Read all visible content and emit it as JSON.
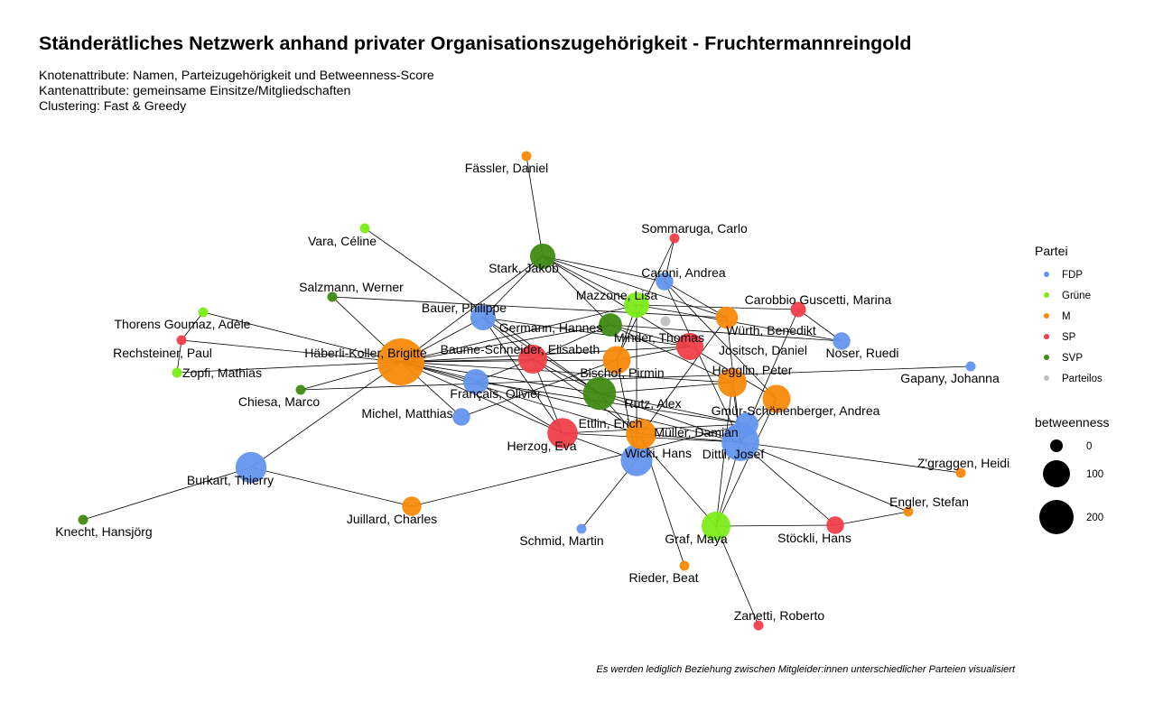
{
  "title": "Ständerätliches Netzwerk anhand privater Organisationszugehörigkeit - Fruchtermannreingold",
  "subtitle": [
    "Knotenattribute: Namen, Parteizugehörigkeit und Betweenness-Score",
    "Kantenattribute: gemeinsame Einsitze/Mitgliedschaften",
    "Clustering: Fast & Greedy"
  ],
  "caption": "Es werden lediglich Beziehung zwischen Mitgleider:innen unterschiedlicher Parteien visualisiert",
  "legend": {
    "party_title": "Partei",
    "parties": [
      {
        "name": "FDP",
        "color": "#6495ED"
      },
      {
        "name": "Grüne",
        "color": "#7CEC1A"
      },
      {
        "name": "M",
        "color": "#F88A0B"
      },
      {
        "name": "SP",
        "color": "#F03E48"
      },
      {
        "name": "SVP",
        "color": "#3F8A12"
      },
      {
        "name": "Parteilos",
        "color": "#BEBEBE"
      }
    ],
    "size_title": "betweenness",
    "sizes": [
      {
        "label": "0",
        "value": 0
      },
      {
        "label": "100",
        "value": 100
      },
      {
        "label": "200",
        "value": 200
      }
    ]
  },
  "nodes": [
    {
      "id": "fassler",
      "name": "Fässler, Daniel",
      "party": "M",
      "betweenness": 0
    },
    {
      "id": "sommaruga",
      "name": "Sommaruga, Carlo",
      "party": "SP",
      "betweenness": 0
    },
    {
      "id": "vara",
      "name": "Vara, Céline",
      "party": "Grüne",
      "betweenness": 0
    },
    {
      "id": "stark",
      "name": "Stark, Jakob",
      "party": "SVP",
      "betweenness": 40
    },
    {
      "id": "caroni",
      "name": "Caroni, Andrea",
      "party": "FDP",
      "betweenness": 10
    },
    {
      "id": "salzmann",
      "name": "Salzmann, Werner",
      "party": "SVP",
      "betweenness": 0
    },
    {
      "id": "mazzone",
      "name": "Mazzone, Lisa",
      "party": "Grüne",
      "betweenness": 40
    },
    {
      "id": "carobbio",
      "name": "Carobbio Guscetti, Marina",
      "party": "SP",
      "betweenness": 5
    },
    {
      "id": "bauer",
      "name": "Bauer, Philippe",
      "party": "FDP",
      "betweenness": 40
    },
    {
      "id": "thorens",
      "name": "Thorens Goumaz, Adèle",
      "party": "Grüne",
      "betweenness": 0
    },
    {
      "id": "germann",
      "name": "Germann, Hannes",
      "party": "SVP",
      "betweenness": 30
    },
    {
      "id": "minder",
      "name": "Minder, Thomas",
      "party": "Parteilos",
      "betweenness": 0
    },
    {
      "id": "wurth",
      "name": "Würth, Benedikt",
      "party": "M",
      "betweenness": 25
    },
    {
      "id": "rechsteiner",
      "name": "Rechsteiner, Paul",
      "party": "SP",
      "betweenness": 0
    },
    {
      "id": "haberli",
      "name": "Häberli-Koller, Brigitte",
      "party": "M",
      "betweenness": 230
    },
    {
      "id": "baume",
      "name": "Baume-Schneider, Elisabeth",
      "party": "SP",
      "betweenness": 60
    },
    {
      "id": "jositsch",
      "name": "Jositsch, Daniel",
      "party": "SP",
      "betweenness": 50
    },
    {
      "id": "noser",
      "name": "Noser, Ruedi",
      "party": "FDP",
      "betweenness": 10
    },
    {
      "id": "zopfi",
      "name": "Zopfi, Mathias",
      "party": "Grüne",
      "betweenness": 0
    },
    {
      "id": "bischof",
      "name": "Bischof, Pirmin",
      "party": "M",
      "betweenness": 55
    },
    {
      "id": "hegglin",
      "name": "Hegglin, Peter",
      "party": "M",
      "betweenness": 60
    },
    {
      "id": "gapany",
      "name": "Gapany, Johanna",
      "party": "FDP",
      "betweenness": 0
    },
    {
      "id": "chiesa",
      "name": "Chiesa, Marco",
      "party": "SVP",
      "betweenness": 0
    },
    {
      "id": "francais",
      "name": "Français, Olivier",
      "party": "FDP",
      "betweenness": 40
    },
    {
      "id": "rutz",
      "name": "Rutz, Alex",
      "party": "SVP",
      "betweenness": 90
    },
    {
      "id": "gmur",
      "name": "Gmür-Schönenberger, Andrea",
      "party": "M",
      "betweenness": 55
    },
    {
      "id": "michel",
      "name": "Michel, Matthias",
      "party": "FDP",
      "betweenness": 10
    },
    {
      "id": "ettlin",
      "name": "Ettlin, Erich",
      "party": "M",
      "betweenness": 70
    },
    {
      "id": "herzog",
      "name": "Herzog, Eva",
      "party": "SP",
      "betweenness": 70
    },
    {
      "id": "muller",
      "name": "Müller, Damian",
      "party": "FDP",
      "betweenness": 30
    },
    {
      "id": "dittli",
      "name": "Dittli, Josef",
      "party": "FDP",
      "betweenness": 130
    },
    {
      "id": "wicki",
      "name": "Wicki, Hans",
      "party": "FDP",
      "betweenness": 80
    },
    {
      "id": "zgraggen",
      "name": "Z'graggen, Heidi",
      "party": "M",
      "betweenness": 0
    },
    {
      "id": "burkart",
      "name": "Burkart, Thierry",
      "party": "FDP",
      "betweenness": 75
    },
    {
      "id": "engler",
      "name": "Engler, Stefan",
      "party": "M",
      "betweenness": 0
    },
    {
      "id": "juillard",
      "name": "Juillard, Charles",
      "party": "M",
      "betweenness": 15
    },
    {
      "id": "knecht",
      "name": "Knecht, Hansjörg",
      "party": "SVP",
      "betweenness": 0
    },
    {
      "id": "schmid",
      "name": "Schmid, Martin",
      "party": "FDP",
      "betweenness": 0
    },
    {
      "id": "graf",
      "name": "Graf, Maya",
      "party": "Grüne",
      "betweenness": 60
    },
    {
      "id": "stockli",
      "name": "Stöckli, Hans",
      "party": "SP",
      "betweenness": 10
    },
    {
      "id": "rieder",
      "name": "Rieder, Beat",
      "party": "M",
      "betweenness": 0
    },
    {
      "id": "zanetti",
      "name": "Zanetti, Roberto",
      "party": "SP",
      "betweenness": 0
    }
  ],
  "edges": [
    [
      "fassler",
      "stark"
    ],
    [
      "stark",
      "caroni"
    ],
    [
      "stark",
      "germann"
    ],
    [
      "stark",
      "bauer"
    ],
    [
      "stark",
      "jositsch"
    ],
    [
      "stark",
      "wurth"
    ],
    [
      "stark",
      "haberli"
    ],
    [
      "stark",
      "mazzone"
    ],
    [
      "sommaruga",
      "caroni"
    ],
    [
      "sommaruga",
      "bischof"
    ],
    [
      "vara",
      "rutz"
    ],
    [
      "salzmann",
      "haberli"
    ],
    [
      "salzmann",
      "wurth"
    ],
    [
      "thorens",
      "rechsteiner"
    ],
    [
      "thorens",
      "haberli"
    ],
    [
      "rechsteiner",
      "zopfi"
    ],
    [
      "rechsteiner",
      "haberli"
    ],
    [
      "zopfi",
      "haberli"
    ],
    [
      "haberli",
      "bauer"
    ],
    [
      "haberli",
      "germann"
    ],
    [
      "haberli",
      "mazzone"
    ],
    [
      "haberli",
      "jositsch"
    ],
    [
      "haberli",
      "francais"
    ],
    [
      "haberli",
      "baume"
    ],
    [
      "haberli",
      "rutz"
    ],
    [
      "haberli",
      "bischof"
    ],
    [
      "haberli",
      "hegglin"
    ],
    [
      "haberli",
      "burkart"
    ],
    [
      "haberli",
      "dittli"
    ],
    [
      "haberli",
      "herzog"
    ],
    [
      "haberli",
      "michel"
    ],
    [
      "haberli",
      "ettlin"
    ],
    [
      "chiesa",
      "gapany"
    ],
    [
      "chiesa",
      "haberli"
    ],
    [
      "bauer",
      "rutz"
    ],
    [
      "bauer",
      "jositsch"
    ],
    [
      "bauer",
      "baume"
    ],
    [
      "bauer",
      "herzog"
    ],
    [
      "germann",
      "jositsch"
    ],
    [
      "germann",
      "noser"
    ],
    [
      "germann",
      "hegglin"
    ],
    [
      "germann",
      "baume"
    ],
    [
      "mazzone",
      "noser"
    ],
    [
      "mazzone",
      "carobbio"
    ],
    [
      "mazzone",
      "wicki"
    ],
    [
      "mazzone",
      "bischof"
    ],
    [
      "caroni",
      "wurth"
    ],
    [
      "caroni",
      "gmur"
    ],
    [
      "caroni",
      "dittli"
    ],
    [
      "carobbio",
      "noser"
    ],
    [
      "carobbio",
      "dittli"
    ],
    [
      "jositsch",
      "bischof"
    ],
    [
      "jositsch",
      "gmur"
    ],
    [
      "wurth",
      "dittli"
    ],
    [
      "wurth",
      "ettlin"
    ],
    [
      "baume",
      "rutz"
    ],
    [
      "baume",
      "herzog"
    ],
    [
      "baume",
      "ettlin"
    ],
    [
      "baume",
      "francais"
    ],
    [
      "francais",
      "herzog"
    ],
    [
      "francais",
      "muller"
    ],
    [
      "michel",
      "bischof"
    ],
    [
      "bischof",
      "wicki"
    ],
    [
      "hegglin",
      "dittli"
    ],
    [
      "hegglin",
      "graf"
    ],
    [
      "rutz",
      "dittli"
    ],
    [
      "rutz",
      "graf"
    ],
    [
      "rutz",
      "muller"
    ],
    [
      "rutz",
      "hegglin"
    ],
    [
      "gmur",
      "dittli"
    ],
    [
      "gmur",
      "graf"
    ],
    [
      "herzog",
      "dittli"
    ],
    [
      "herzog",
      "muller"
    ],
    [
      "herzog",
      "wicki"
    ],
    [
      "ettlin",
      "rieder"
    ],
    [
      "ettlin",
      "dittli"
    ],
    [
      "muller",
      "juillard"
    ],
    [
      "muller",
      "dittli"
    ],
    [
      "dittli",
      "zgraggen"
    ],
    [
      "dittli",
      "engler"
    ],
    [
      "dittli",
      "stockli"
    ],
    [
      "wicki",
      "schmid"
    ],
    [
      "burkart",
      "juillard"
    ],
    [
      "burkart",
      "knecht"
    ],
    [
      "graf",
      "stockli"
    ],
    [
      "graf",
      "zanetti"
    ],
    [
      "graf",
      "dittli"
    ],
    [
      "stockli",
      "engler"
    ]
  ]
}
